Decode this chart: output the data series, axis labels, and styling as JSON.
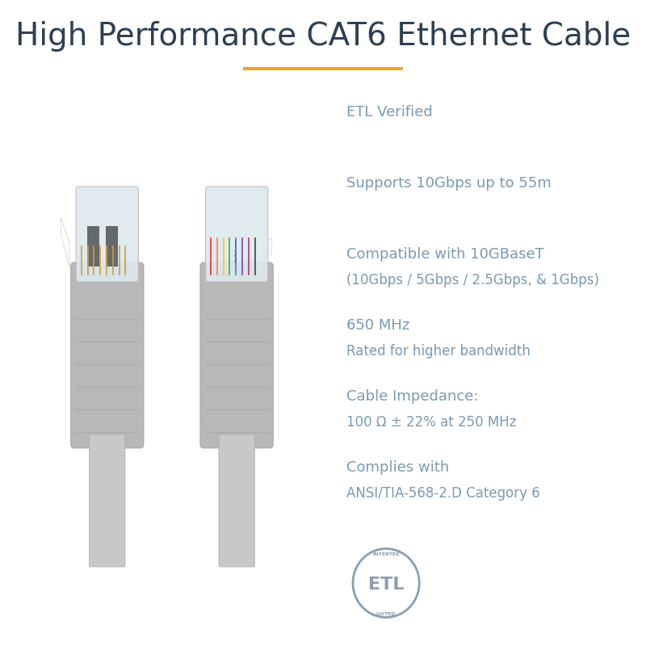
{
  "title": "High Performance CAT6 Ethernet Cable",
  "title_color": "#2d3f54",
  "title_fontsize": 28,
  "underline_color": "#e8a820",
  "background_color": "#ffffff",
  "text_color": "#7a9ab0",
  "specs": [
    {
      "line1": "ETL Verified",
      "line2": null
    },
    {
      "line1": "Supports 10Gbps up to 55m",
      "line2": null
    },
    {
      "line1": "Compatible with 10GBaseT",
      "line2": "(10Gbps / 5Gbps / 2.5Gbps, & 1Gbps)"
    },
    {
      "line1": "650 MHz",
      "line2": "Rated for higher bandwidth"
    },
    {
      "line1": "Cable Impedance:",
      "line2": "100 Ω ± 22% at 250 MHz"
    },
    {
      "line1": "Complies with",
      "line2": "ANSI/TIA-568-2.D Category 6"
    }
  ],
  "spec_fontsize": 13,
  "etl_color": "#8a9fb0"
}
